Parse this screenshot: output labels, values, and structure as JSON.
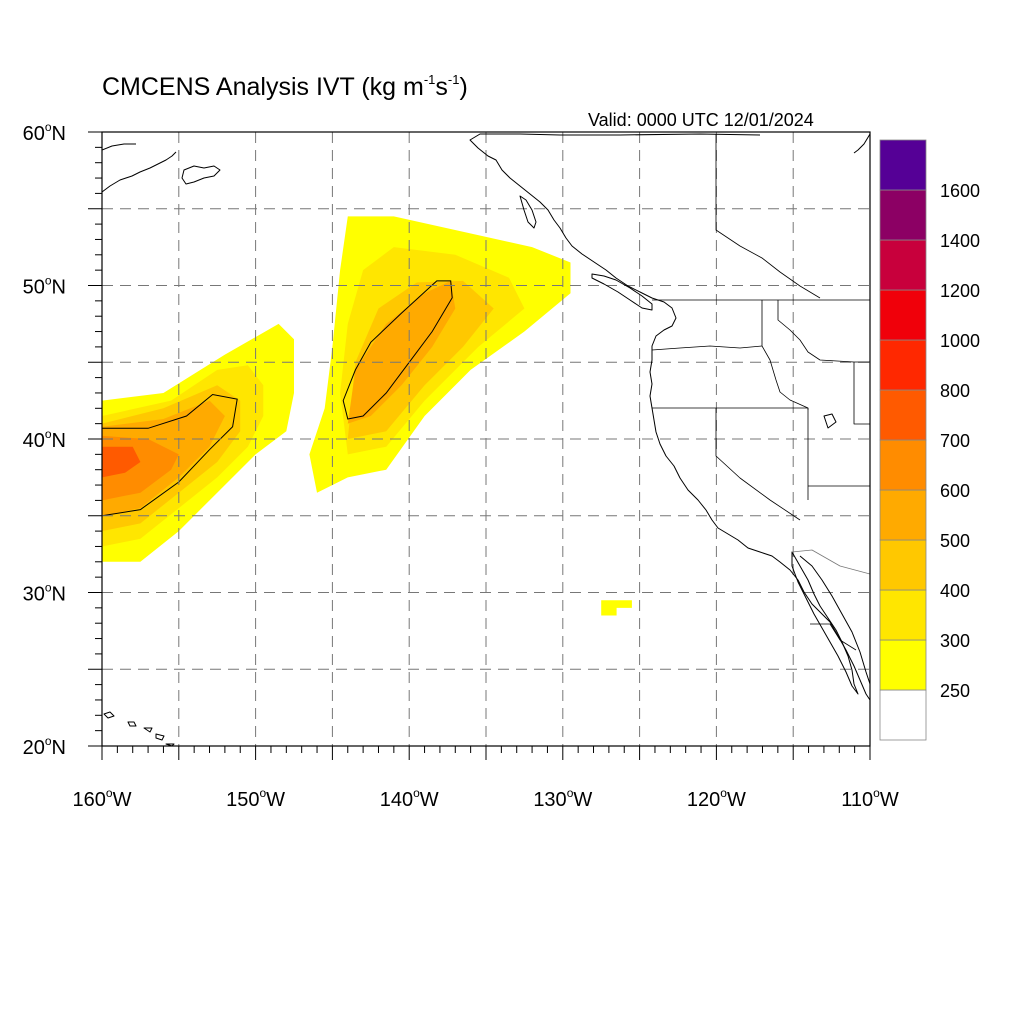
{
  "title": {
    "prefix": "CMCENS Analysis IVT (kg m",
    "sup1": "-1",
    "middle": "s",
    "sup2": "-1",
    "suffix": ")"
  },
  "valid_label": "Valid: 0000 UTC 12/01/2024",
  "map": {
    "extent": {
      "lon": [
        -160,
        -110
      ],
      "lat": [
        20,
        60
      ]
    },
    "grid": "dashed",
    "lat_ticks": [
      {
        "value": 60,
        "label": "60",
        "hemi": "N"
      },
      {
        "value": 50,
        "label": "50",
        "hemi": "N"
      },
      {
        "value": 40,
        "label": "40",
        "hemi": "N"
      },
      {
        "value": 30,
        "label": "30",
        "hemi": "N"
      },
      {
        "value": 20,
        "label": "20",
        "hemi": "N"
      }
    ],
    "lon_ticks": [
      {
        "value": -160,
        "label": "160",
        "hemi": "W"
      },
      {
        "value": -150,
        "label": "150",
        "hemi": "W"
      },
      {
        "value": -140,
        "label": "140",
        "hemi": "W"
      },
      {
        "value": -130,
        "label": "130",
        "hemi": "W"
      },
      {
        "value": -120,
        "label": "120",
        "hemi": "W"
      },
      {
        "value": -110,
        "label": "110",
        "hemi": "W"
      }
    ],
    "degree_symbol": "o"
  },
  "colorbar": {
    "colors": [
      "#ffffff",
      "#ffff00",
      "#ffe600",
      "#ffc800",
      "#ffaa00",
      "#ff8c00",
      "#ff5a00",
      "#ff2800",
      "#f0000a",
      "#c8003c",
      "#8c0064",
      "#550096"
    ],
    "labels": [
      "250",
      "300",
      "400",
      "500",
      "600",
      "700",
      "800",
      "1000",
      "1200",
      "1400",
      "1600"
    ]
  },
  "ivt_features": [
    {
      "name": "western-atmospheric-river",
      "layers": [
        {
          "level": 1,
          "polygon": [
            [
              -160,
              32
            ],
            [
              -157.5,
              32
            ],
            [
              -155,
              34
            ],
            [
              -152.5,
              36.5
            ],
            [
              -150,
              39
            ],
            [
              -148,
              40.5
            ],
            [
              -147.5,
              43
            ],
            [
              -147.5,
              46.5
            ],
            [
              -148.5,
              47.5
            ],
            [
              -152,
              45.5
            ],
            [
              -156,
              43
            ],
            [
              -160,
              42.5
            ]
          ]
        },
        {
          "level": 2,
          "polygon": [
            [
              -160,
              33
            ],
            [
              -157.5,
              33.5
            ],
            [
              -155,
              35.5
            ],
            [
              -152.5,
              37.5
            ],
            [
              -150.5,
              39.5
            ],
            [
              -149.5,
              41.5
            ],
            [
              -149.5,
              43.5
            ],
            [
              -150.5,
              44.8
            ],
            [
              -152.5,
              44.5
            ],
            [
              -155.5,
              42.5
            ],
            [
              -160,
              41.5
            ]
          ]
        },
        {
          "level": 3,
          "polygon": [
            [
              -160,
              34
            ],
            [
              -157.5,
              34.5
            ],
            [
              -155,
              36.5
            ],
            [
              -152.5,
              38.5
            ],
            [
              -151,
              40.5
            ],
            [
              -151,
              42.5
            ],
            [
              -152.5,
              43.5
            ],
            [
              -156,
              42
            ],
            [
              -160,
              41
            ]
          ]
        },
        {
          "level": 4,
          "polygon": [
            [
              -160,
              35
            ],
            [
              -157.5,
              35.5
            ],
            [
              -155,
              37.5
            ],
            [
              -153,
              39.5
            ],
            [
              -152,
              41.5
            ],
            [
              -153,
              42.5
            ],
            [
              -156,
              41.3
            ],
            [
              -160,
              40.8
            ]
          ]
        },
        {
          "level": 5,
          "polygon": [
            [
              -160,
              36
            ],
            [
              -157.5,
              36.5
            ],
            [
              -155.5,
              38
            ],
            [
              -155,
              39
            ],
            [
              -157,
              40
            ],
            [
              -160,
              40.2
            ]
          ]
        },
        {
          "level": 6,
          "polygon": [
            [
              -160,
              37.5
            ],
            [
              -158.5,
              37.8
            ],
            [
              -157.5,
              38.5
            ],
            [
              -158,
              39.5
            ],
            [
              -160,
              39.5
            ]
          ]
        }
      ],
      "contour": [
        [
          -160,
          35
        ],
        [
          -157.5,
          35.4
        ],
        [
          -155,
          37.2
        ],
        [
          -153,
          39.3
        ],
        [
          -151.5,
          40.8
        ],
        [
          -151.2,
          42.6
        ],
        [
          -152.8,
          42.9
        ],
        [
          -154.5,
          41.5
        ],
        [
          -157,
          40.7
        ],
        [
          -160,
          40.7
        ]
      ]
    },
    {
      "name": "eastern-atmospheric-river",
      "layers": [
        {
          "level": 1,
          "polygon": [
            [
              -146,
              36.5
            ],
            [
              -144,
              37.5
            ],
            [
              -141.5,
              38
            ],
            [
              -139,
              41.5
            ],
            [
              -136,
              44.5
            ],
            [
              -132.5,
              47
            ],
            [
              -129.5,
              49.5
            ],
            [
              -129.5,
              51.5
            ],
            [
              -132,
              52.5
            ],
            [
              -136.5,
              53.5
            ],
            [
              -141,
              54.5
            ],
            [
              -144,
              54.5
            ],
            [
              -144.5,
              51
            ],
            [
              -145,
              46
            ],
            [
              -145.5,
              42
            ],
            [
              -146.5,
              39
            ]
          ]
        },
        {
          "level": 2,
          "polygon": [
            [
              -144,
              39
            ],
            [
              -141.5,
              39.5
            ],
            [
              -139,
              42.5
            ],
            [
              -135.5,
              46
            ],
            [
              -132.5,
              48.5
            ],
            [
              -133.5,
              50.5
            ],
            [
              -137,
              52
            ],
            [
              -141,
              52.5
            ],
            [
              -143,
              51
            ],
            [
              -144,
              47.5
            ],
            [
              -144.5,
              43
            ]
          ]
        },
        {
          "level": 3,
          "polygon": [
            [
              -144,
              40
            ],
            [
              -141.5,
              40.5
            ],
            [
              -139,
              43.5
            ],
            [
              -136.5,
              46
            ],
            [
              -134.5,
              48.5
            ],
            [
              -136.5,
              50.3
            ],
            [
              -139.5,
              50.2
            ],
            [
              -142,
              48.5
            ],
            [
              -143.5,
              45
            ]
          ]
        },
        {
          "level": 4,
          "polygon": [
            [
              -144,
              41
            ],
            [
              -142.5,
              41.5
            ],
            [
              -140.5,
              43.5
            ],
            [
              -138.5,
              46
            ],
            [
              -137,
              48.5
            ],
            [
              -137.3,
              50.3
            ],
            [
              -139,
              49.5
            ],
            [
              -141.5,
              47.5
            ],
            [
              -143.5,
              44.5
            ]
          ]
        }
      ],
      "contour": [
        [
          -144,
          41.3
        ],
        [
          -143,
          41.5
        ],
        [
          -141.5,
          43
        ],
        [
          -140,
          45
        ],
        [
          -138.5,
          47
        ],
        [
          -137.2,
          49.2
        ],
        [
          -137.3,
          50.3
        ],
        [
          -138.2,
          50.3
        ],
        [
          -140.5,
          48.2
        ],
        [
          -142.5,
          46.3
        ],
        [
          -143.5,
          44.5
        ],
        [
          -144.3,
          42.5
        ]
      ]
    },
    {
      "name": "isolated-ivt-patch",
      "layers": [
        {
          "level": 1,
          "polygon": [
            [
              -127.5,
              28.5
            ],
            [
              -126.5,
              28.5
            ],
            [
              -126.5,
              29
            ],
            [
              -125.5,
              29
            ],
            [
              -125.5,
              29.5
            ],
            [
              -127.5,
              29.5
            ]
          ]
        }
      ],
      "contour": []
    }
  ]
}
